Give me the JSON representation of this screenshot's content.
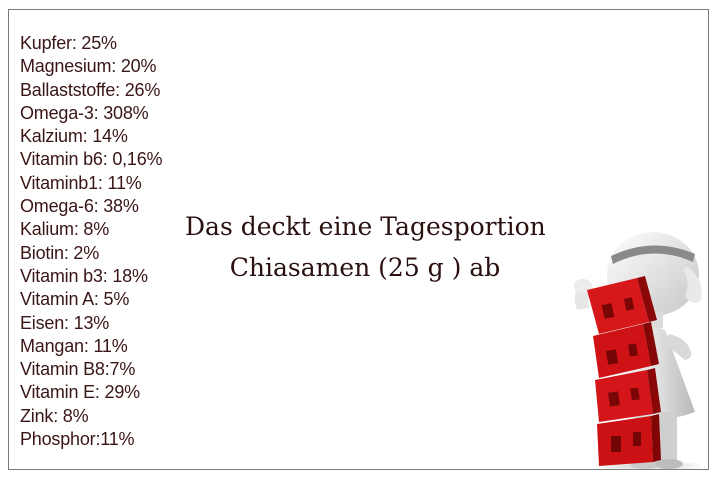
{
  "nutrients": [
    "Kupfer: 25%",
    "Magnesium: 20%",
    "Ballaststoffe: 26%",
    "Omega-3: 308%",
    "Kalzium: 14%",
    "Vitamin b6: 0,16%",
    "Vitaminb1: 11%",
    "Omega-6: 38%",
    "Kalium: 8%",
    "Biotin: 2%",
    "Vitamin b3: 18%",
    "Vitamin A: 5%",
    "Eisen: 13%",
    "Mangan: 11%",
    "Vitamin B8:7%",
    "Vitamin E: 29%",
    "Zink: 8%",
    "Phosphor:11%"
  ],
  "headline": {
    "line1": "Das deckt eine Tagesportion",
    "line2": "Chiasamen (25 g ) ab"
  },
  "illustration": {
    "figure_icon": "figure-with-red-blocks-illustration",
    "colors": {
      "blocks": "#c80d0d",
      "figure": "#e4e4e4"
    }
  }
}
